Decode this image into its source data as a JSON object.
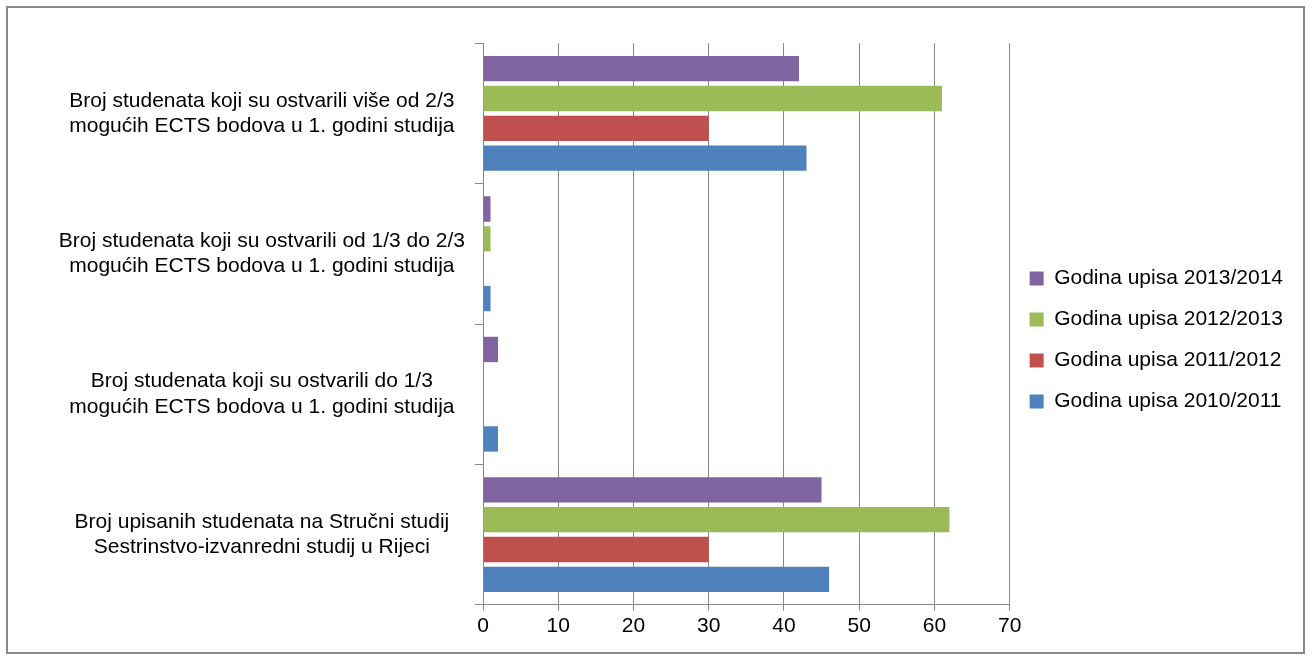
{
  "chart_data": {
    "type": "bar",
    "orientation": "horizontal",
    "categories": [
      "Broj studenata koji su ostvarili više od 2/3 mogućih ECTS bodova u 1. godini studija",
      "Broj studenata koji su ostvarili od 1/3 do 2/3 mogućih ECTS bodova u 1. godini studija",
      "Broj studenata koji su ostvarili do 1/3 mogućih ECTS bodova u 1. godini studija",
      "Broj upisanih studenata na Stručni studij Sestrinstvo-izvanredni studij u Rijeci"
    ],
    "series": [
      {
        "name": "Godina upisa 2013/2014",
        "color": "#8064a2",
        "values": [
          42,
          1,
          2,
          45
        ]
      },
      {
        "name": "Godina upisa 2012/2013",
        "color": "#9bbb59",
        "values": [
          61,
          1,
          0,
          62
        ]
      },
      {
        "name": "Godina upisa 2011/2012",
        "color": "#c0504d",
        "values": [
          30,
          0,
          0,
          30
        ]
      },
      {
        "name": "Godina upisa 2010/2011",
        "color": "#4f81bd",
        "values": [
          43,
          1,
          2,
          46
        ]
      }
    ],
    "xlim": [
      0,
      70
    ],
    "xticks": [
      0,
      10,
      20,
      30,
      40,
      50,
      60,
      70
    ],
    "grid": "x",
    "legend": "right"
  }
}
